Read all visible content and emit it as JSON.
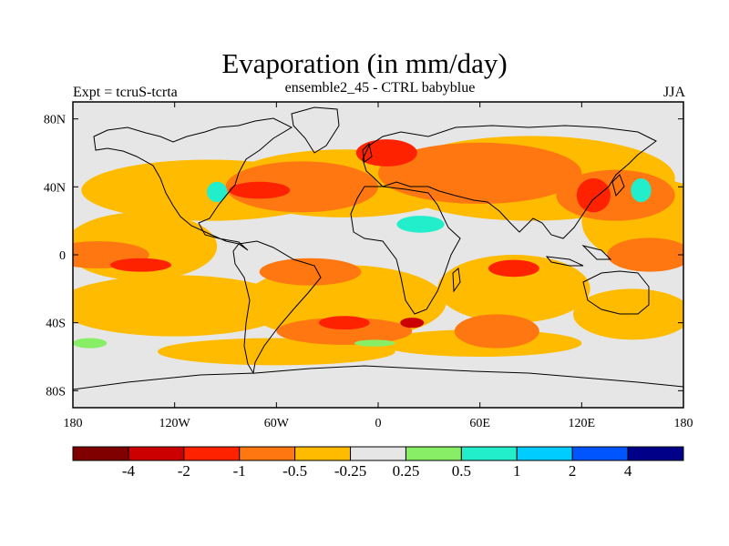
{
  "title": "Evaporation (in mm/day)",
  "subtitle": "ensemble2_45 - CTRL babyblue",
  "left_label": "Expt = tcruS-tcrta",
  "right_label": "JJA",
  "axes": {
    "x_ticks": [
      {
        "lon": -180,
        "label": "180"
      },
      {
        "lon": -120,
        "label": "120W"
      },
      {
        "lon": -60,
        "label": "60W"
      },
      {
        "lon": 0,
        "label": "0"
      },
      {
        "lon": 60,
        "label": "60E"
      },
      {
        "lon": 120,
        "label": "120E"
      },
      {
        "lon": 180,
        "label": "180"
      }
    ],
    "y_ticks": [
      {
        "lat": 80,
        "label": "80N"
      },
      {
        "lat": 40,
        "label": "40N"
      },
      {
        "lat": 0,
        "label": "0"
      },
      {
        "lat": -40,
        "label": "40S"
      },
      {
        "lat": -80,
        "label": "80S"
      }
    ],
    "lon_range": [
      -180,
      180
    ],
    "lat_range": [
      -90,
      90
    ]
  },
  "colorbar": {
    "colors": [
      "#800000",
      "#cc0000",
      "#ff2200",
      "#ff7711",
      "#ffbb00",
      "#e6e6e6",
      "#88ee66",
      "#22eecc",
      "#00ccff",
      "#0055ff",
      "#000088"
    ],
    "labels": [
      "-4",
      "-2",
      "-1",
      "-0.5",
      "-0.25",
      "0.25",
      "0.5",
      "1",
      "2",
      "4"
    ]
  },
  "map_background": "#e6e6e6",
  "fields": [
    {
      "level": "-0.25",
      "color": "#ffbb00",
      "lon": -100,
      "lat": 38,
      "rx": 75,
      "ry": 18
    },
    {
      "level": "-0.25",
      "color": "#ffbb00",
      "lon": -20,
      "lat": 42,
      "rx": 70,
      "ry": 20
    },
    {
      "level": "-0.25",
      "color": "#ffbb00",
      "lon": 90,
      "lat": 45,
      "rx": 85,
      "ry": 25
    },
    {
      "level": "-0.25",
      "color": "#ffbb00",
      "lon": 160,
      "lat": 20,
      "rx": 40,
      "ry": 25
    },
    {
      "level": "-0.25",
      "color": "#ffbb00",
      "lon": -140,
      "lat": 5,
      "rx": 45,
      "ry": 20
    },
    {
      "level": "-0.25",
      "color": "#ffbb00",
      "lon": -120,
      "lat": -30,
      "rx": 70,
      "ry": 18
    },
    {
      "level": "-0.25",
      "color": "#ffbb00",
      "lon": -20,
      "lat": -28,
      "rx": 60,
      "ry": 22
    },
    {
      "level": "-0.25",
      "color": "#ffbb00",
      "lon": 80,
      "lat": -20,
      "rx": 45,
      "ry": 20
    },
    {
      "level": "-0.25",
      "color": "#ffbb00",
      "lon": 150,
      "lat": -35,
      "rx": 35,
      "ry": 15
    },
    {
      "level": "-0.25",
      "color": "#ffbb00",
      "lon": -60,
      "lat": -57,
      "rx": 70,
      "ry": 8
    },
    {
      "level": "-0.25",
      "color": "#ffbb00",
      "lon": 60,
      "lat": -52,
      "rx": 60,
      "ry": 8
    },
    {
      "level": "-0.5",
      "color": "#ff7711",
      "lon": -45,
      "lat": 40,
      "rx": 45,
      "ry": 15
    },
    {
      "level": "-0.5",
      "color": "#ff7711",
      "lon": 60,
      "lat": 48,
      "rx": 60,
      "ry": 18
    },
    {
      "level": "-0.5",
      "color": "#ff7711",
      "lon": 140,
      "lat": 35,
      "rx": 35,
      "ry": 15
    },
    {
      "level": "-0.5",
      "color": "#ff7711",
      "lon": -165,
      "lat": 0,
      "rx": 30,
      "ry": 8
    },
    {
      "level": "-0.5",
      "color": "#ff7711",
      "lon": -40,
      "lat": -10,
      "rx": 30,
      "ry": 8
    },
    {
      "level": "-0.5",
      "color": "#ff7711",
      "lon": -20,
      "lat": -45,
      "rx": 40,
      "ry": 8
    },
    {
      "level": "-0.5",
      "color": "#ff7711",
      "lon": 70,
      "lat": -45,
      "rx": 25,
      "ry": 10
    },
    {
      "level": "-0.5",
      "color": "#ff7711",
      "lon": 160,
      "lat": 0,
      "rx": 25,
      "ry": 10
    },
    {
      "level": "-1",
      "color": "#ff2200",
      "lon": -70,
      "lat": 38,
      "rx": 18,
      "ry": 5
    },
    {
      "level": "-1",
      "color": "#ff2200",
      "lon": 5,
      "lat": 60,
      "rx": 18,
      "ry": 8
    },
    {
      "level": "-1",
      "color": "#ff2200",
      "lon": 127,
      "lat": 35,
      "rx": 10,
      "ry": 10
    },
    {
      "level": "-1",
      "color": "#ff2200",
      "lon": -140,
      "lat": -6,
      "rx": 18,
      "ry": 4
    },
    {
      "level": "-1",
      "color": "#ff2200",
      "lon": -20,
      "lat": -40,
      "rx": 15,
      "ry": 4
    },
    {
      "level": "-1",
      "color": "#ff2200",
      "lon": 80,
      "lat": -8,
      "rx": 15,
      "ry": 5
    },
    {
      "level": "-2",
      "color": "#cc0000",
      "lon": 20,
      "lat": -40,
      "rx": 7,
      "ry": 3
    },
    {
      "level": "0.5",
      "color": "#88ee66",
      "lon": -170,
      "lat": -52,
      "rx": 10,
      "ry": 3
    },
    {
      "level": "0.5",
      "color": "#88ee66",
      "lon": -2,
      "lat": -52,
      "rx": 12,
      "ry": 2
    },
    {
      "level": "1",
      "color": "#22eecc",
      "lon": -95,
      "lat": 37,
      "rx": 6,
      "ry": 6
    },
    {
      "level": "1",
      "color": "#22eecc",
      "lon": 25,
      "lat": 18,
      "rx": 14,
      "ry": 5
    },
    {
      "level": "1",
      "color": "#22eecc",
      "lon": 155,
      "lat": 38,
      "rx": 6,
      "ry": 7
    }
  ]
}
